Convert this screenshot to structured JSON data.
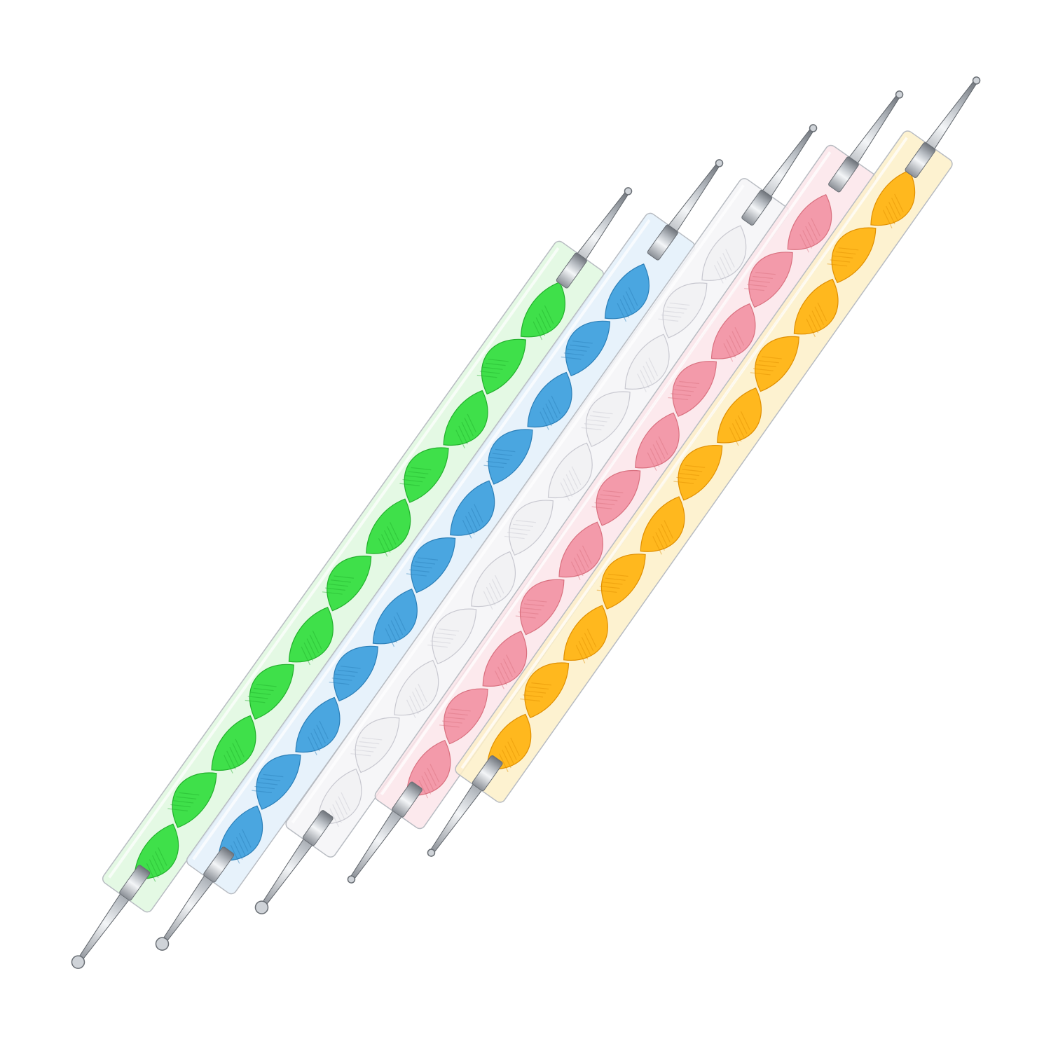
{
  "background": "#ffffff",
  "tools": [
    {
      "name": "green",
      "color": "#3fe04a",
      "shade": "#22b02c",
      "tint": "#dff8df"
    },
    {
      "name": "blue",
      "color": "#4aa6e0",
      "shade": "#2b7fb8",
      "tint": "#e3f0fa"
    },
    {
      "name": "white",
      "color": "#f2f2f4",
      "shade": "#c8c8d0",
      "tint": "#f4f4f7"
    },
    {
      "name": "pink",
      "color": "#f39aaa",
      "shade": "#d9707f",
      "tint": "#fbe5ea"
    },
    {
      "name": "yellow",
      "color": "#ffb81e",
      "shade": "#e08f00",
      "tint": "#fdf0c8"
    }
  ]
}
